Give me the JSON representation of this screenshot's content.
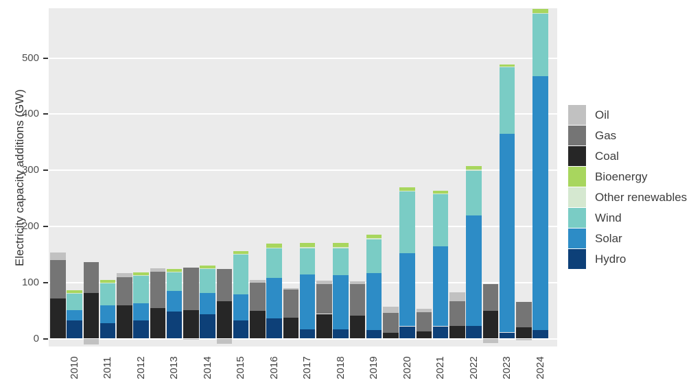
{
  "chart_data": {
    "type": "bar",
    "stacked": true,
    "title": "",
    "xlabel": "",
    "ylabel": "Electricity capacity additions (GW)",
    "unit": "GW",
    "ylim": [
      -15,
      590
    ],
    "yticks": [
      0,
      100,
      200,
      300,
      400,
      500
    ],
    "grid": "horizontal-white-on-gray-panel",
    "legend_position": "right",
    "bar_layout": "two stacked bars per year: fossil (Coal,Gas,Oil) and renewables (Hydro,Solar,Wind,Other renewables,Bioenergy); negative Oil segments drawn below zero",
    "categories": [
      "2010",
      "2011",
      "2012",
      "2013",
      "2014",
      "2015",
      "2016",
      "2017",
      "2018",
      "2019",
      "2020",
      "2021",
      "2022",
      "2023",
      "2024"
    ],
    "series": [
      {
        "name": "Oil",
        "group": "fossil",
        "stack_order": 3,
        "color": "#c1c1c1",
        "values": [
          14,
          -10,
          7,
          6,
          -2,
          -9.5,
          4.5,
          2,
          6.5,
          5,
          11,
          6,
          16,
          -8,
          -3
        ]
      },
      {
        "name": "Gas",
        "group": "fossil",
        "stack_order": 2,
        "color": "#757575",
        "values": [
          69,
          55,
          51,
          64,
          75,
          57,
          50,
          51,
          53,
          56,
          36,
          34,
          44,
          48,
          45
        ]
      },
      {
        "name": "Coal",
        "group": "fossil",
        "stack_order": 1,
        "color": "#262626",
        "values": [
          71,
          81,
          59,
          55,
          51,
          67,
          50,
          37,
          44,
          41,
          10,
          13,
          23,
          49,
          20
        ]
      },
      {
        "name": "Bioenergy",
        "group": "renewables",
        "stack_order": 5,
        "color": "#a8d65e",
        "values": [
          5,
          5,
          5,
          5,
          5,
          5,
          7,
          7,
          7,
          6,
          6,
          5,
          6,
          3,
          6.5
        ]
      },
      {
        "name": "Other renewables",
        "group": "renewables",
        "stack_order": 4,
        "color": "#d5e8d0",
        "values": [
          1,
          1,
          1,
          1,
          1,
          1,
          1.5,
          2.5,
          2.5,
          2,
          2,
          2,
          2,
          1,
          1.5
        ]
      },
      {
        "name": "Wind",
        "group": "renewables",
        "stack_order": 3,
        "color": "#7accc5",
        "values": [
          29,
          40,
          49,
          33,
          43,
          71,
          53,
          47,
          47,
          60,
          110,
          92,
          80,
          119,
          112
        ]
      },
      {
        "name": "Solar",
        "group": "renewables",
        "stack_order": 2,
        "color": "#2d8cc6",
        "values": [
          19,
          32,
          31,
          37,
          37,
          47,
          72,
          97,
          97.5,
          102,
          130,
          143,
          196,
          354,
          452
        ]
      },
      {
        "name": "Hydro",
        "group": "renewables",
        "stack_order": 1,
        "color": "#0d4078",
        "values": [
          32,
          27,
          32,
          48,
          44,
          32,
          36,
          17,
          16,
          15,
          22,
          22,
          23,
          11,
          15
        ]
      }
    ],
    "colors": {
      "panel_background": "#ebebeb",
      "gridline": "#ffffff",
      "axis_text": "#404040",
      "page_background": "#ffffff"
    }
  }
}
